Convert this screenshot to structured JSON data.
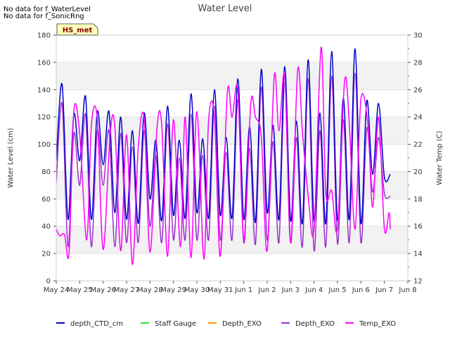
{
  "notes": [
    "No data for f_WaterLevel",
    "No data for f_SonicRng"
  ],
  "chart_data": {
    "type": "line",
    "title": "Water Level",
    "ylabel": "Water Level (cm)",
    "y2label": "Water Temp (C)",
    "ylim": [
      0,
      180
    ],
    "y2lim": [
      12,
      30
    ],
    "yticks": [
      "0",
      "20",
      "40",
      "60",
      "80",
      "100",
      "120",
      "140",
      "160",
      "180"
    ],
    "y2ticks": [
      "12",
      "14",
      "16",
      "18",
      "20",
      "22",
      "24",
      "26",
      "28",
      "30"
    ],
    "xlim": [
      0,
      15
    ],
    "xticks": [
      "May 24",
      "May 25",
      "May 26",
      "May 27",
      "May 28",
      "May 29",
      "May 30",
      "May 31",
      "Jun 1",
      "Jun 2",
      "Jun 3",
      "Jun 4",
      "Jun 5",
      "Jun 6",
      "Jun 7",
      "Jun 8"
    ],
    "badge": "HS_met",
    "grid": "horizontal bands",
    "legend_position": "bottom",
    "series": [
      {
        "name": "depth_CTD_cm",
        "color": "#0000cc",
        "axis": "left",
        "x": [
          0.0,
          0.25,
          0.5,
          0.75,
          1.0,
          1.25,
          1.5,
          1.75,
          2.0,
          2.25,
          2.5,
          2.75,
          3.0,
          3.25,
          3.5,
          3.75,
          4.0,
          4.25,
          4.5,
          4.75,
          5.0,
          5.25,
          5.5,
          5.75,
          6.0,
          6.25,
          6.5,
          6.75,
          7.0,
          7.25,
          7.5,
          7.75,
          8.0,
          8.25,
          8.5,
          8.75,
          9.0,
          9.25,
          9.5,
          9.75,
          10.0,
          10.25,
          10.5,
          10.75,
          11.0,
          11.25,
          11.5,
          11.75,
          12.0,
          12.25,
          12.5,
          12.75,
          13.0,
          13.25,
          13.5,
          13.75,
          14.0,
          14.25
        ],
        "values": [
          88,
          144,
          45,
          122,
          88,
          135,
          45,
          124,
          85,
          124,
          50,
          120,
          45,
          110,
          42,
          123,
          60,
          103,
          44,
          128,
          48,
          103,
          46,
          137,
          50,
          104,
          46,
          140,
          48,
          105,
          46,
          148,
          45,
          113,
          43,
          155,
          50,
          114,
          45,
          157,
          44,
          117,
          42,
          162,
          44,
          123,
          42,
          168,
          44,
          134,
          45,
          170,
          42,
          132,
          78,
          130,
          76,
          78
        ]
      },
      {
        "name": "Staff Gauge",
        "color": "#33dd33",
        "axis": "left",
        "x": [],
        "values": []
      },
      {
        "name": "Depth_EXO",
        "color": "#ff9900",
        "axis": "left",
        "x": [],
        "values": []
      },
      {
        "name": "Depth_EXO",
        "color": "#9933cc",
        "axis": "left",
        "x": [
          0.0,
          0.25,
          0.5,
          0.75,
          1.0,
          1.25,
          1.5,
          1.75,
          2.0,
          2.25,
          2.5,
          2.75,
          3.0,
          3.25,
          3.5,
          3.75,
          4.0,
          4.25,
          4.5,
          4.75,
          5.0,
          5.25,
          5.5,
          5.75,
          6.0,
          6.25,
          6.5,
          6.75,
          7.0,
          7.25,
          7.5,
          7.75,
          8.0,
          8.25,
          8.5,
          8.75,
          9.0,
          9.25,
          9.5,
          9.75,
          10.0,
          10.25,
          10.5,
          10.75,
          11.0,
          11.25,
          11.5,
          11.75,
          12.0,
          12.25,
          12.5,
          12.75,
          13.0,
          13.25,
          13.5,
          13.75,
          14.0,
          14.25
        ],
        "values": [
          72,
          130,
          25,
          108,
          70,
          122,
          25,
          110,
          70,
          110,
          25,
          108,
          28,
          98,
          28,
          110,
          40,
          92,
          28,
          115,
          30,
          90,
          30,
          122,
          30,
          92,
          30,
          128,
          30,
          94,
          30,
          133,
          28,
          97,
          27,
          142,
          30,
          102,
          28,
          145,
          28,
          105,
          25,
          148,
          22,
          110,
          25,
          150,
          27,
          118,
          28,
          152,
          28,
          112,
          65,
          105,
          64,
          62
        ]
      },
      {
        "name": "Temp_EXO",
        "color": "#ff00ff",
        "axis": "right",
        "x": [
          0.0,
          0.15,
          0.35,
          0.55,
          0.75,
          1.0,
          1.3,
          1.5,
          1.75,
          2.0,
          2.3,
          2.5,
          2.75,
          3.0,
          3.25,
          3.5,
          3.75,
          4.0,
          4.3,
          4.5,
          4.75,
          5.0,
          5.3,
          5.5,
          5.75,
          6.0,
          6.3,
          6.5,
          6.75,
          7.0,
          7.3,
          7.5,
          7.75,
          8.0,
          8.3,
          8.5,
          8.75,
          9.0,
          9.3,
          9.5,
          9.75,
          10.0,
          10.3,
          10.5,
          10.75,
          11.0,
          11.3,
          11.5,
          11.75,
          12.0,
          12.3,
          12.5,
          12.75,
          13.0,
          13.3,
          13.5,
          13.75,
          14.0,
          14.2,
          14.25
        ],
        "values": [
          15.8,
          15.3,
          15.4,
          14.1,
          24.4,
          22.8,
          15.0,
          23.4,
          23.9,
          14.3,
          22.8,
          23.3,
          14.2,
          22.7,
          13.2,
          21.8,
          23.9,
          14.1,
          23.2,
          23.4,
          13.8,
          23.8,
          14.5,
          24.0,
          13.7,
          24.4,
          13.6,
          23.8,
          24.0,
          13.8,
          25.8,
          24.0,
          26.0,
          15.0,
          25.0,
          24.0,
          22.5,
          14.2,
          27.0,
          23.0,
          27.0,
          14.8,
          27.4,
          23.0,
          18.2,
          15.8,
          29.1,
          18.5,
          18.6,
          15.8,
          26.6,
          23.6,
          15.8,
          25.3,
          23.4,
          17.4,
          24.0,
          15.8,
          17.0,
          15.8
        ]
      }
    ]
  }
}
